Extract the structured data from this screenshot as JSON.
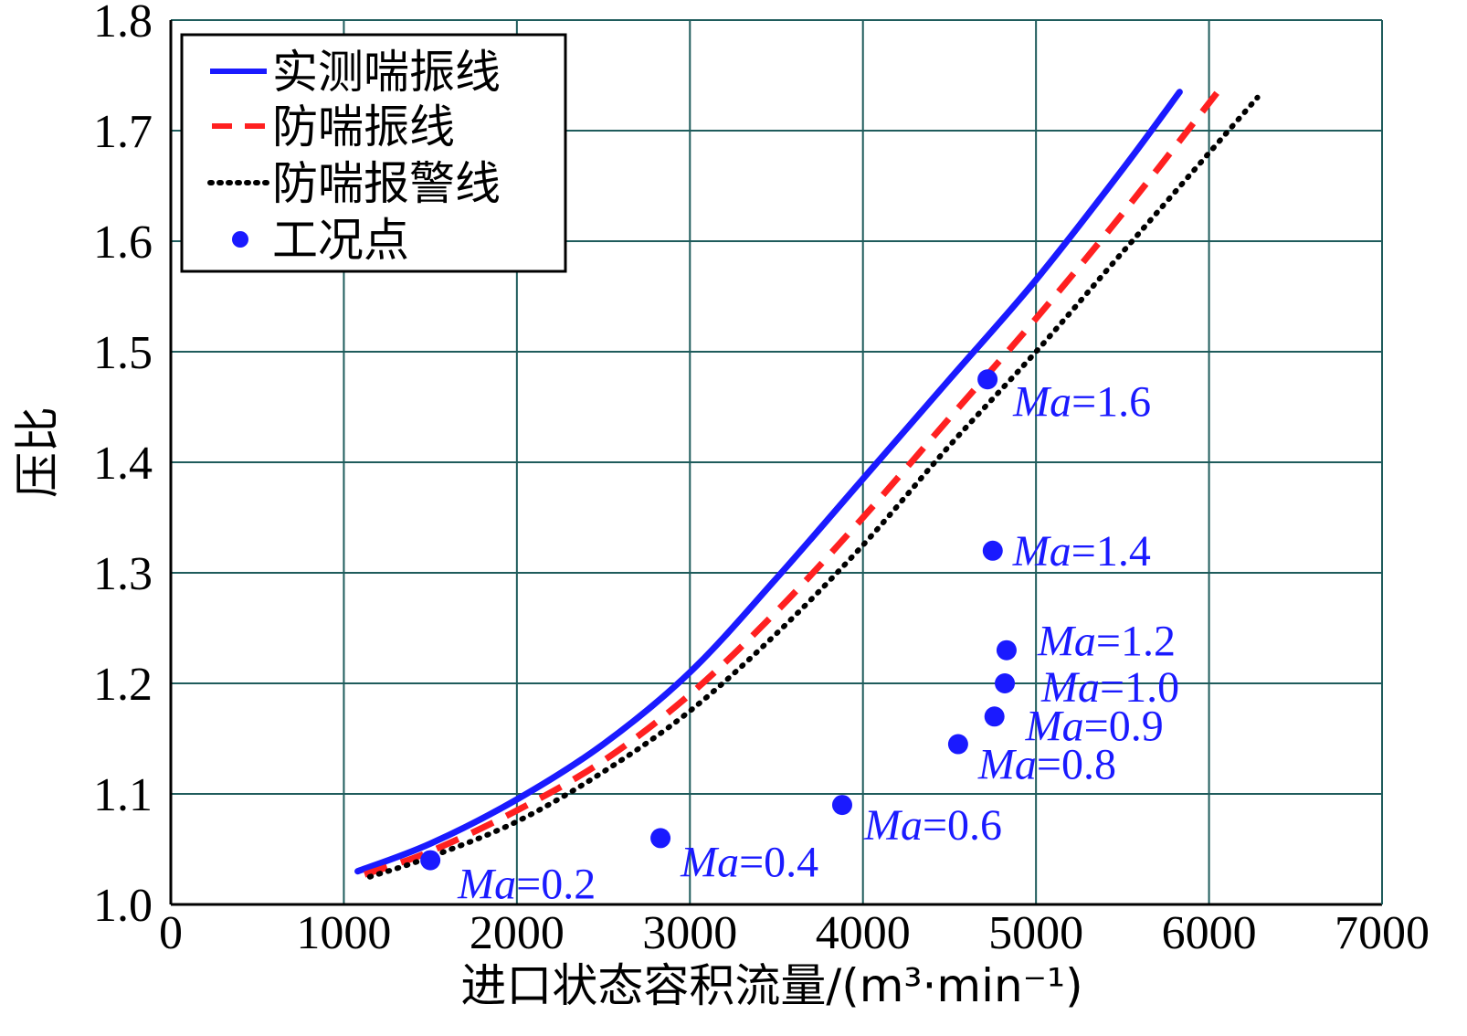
{
  "chart_data": {
    "type": "line",
    "xlabel": "进口状态容积流量/(m³·min⁻¹)",
    "ylabel": "压比",
    "xlim": [
      0,
      7000
    ],
    "ylim": [
      1.0,
      1.8
    ],
    "xticks": [
      "0",
      "1000",
      "2000",
      "3000",
      "4000",
      "5000",
      "6000",
      "7000"
    ],
    "yticks": [
      "1.0",
      "1.1",
      "1.2",
      "1.3",
      "1.4",
      "1.5",
      "1.6",
      "1.7",
      "1.8"
    ],
    "grid": true,
    "legend_position": "top-left",
    "colors": {
      "measured": "#1a1aff",
      "anti_surge": "#ff2020",
      "alarm": "#000000",
      "points": "#1a1aff",
      "grid": "#1f5c5c"
    },
    "series": [
      {
        "name": "实测喘振线",
        "style": "solid",
        "x": [
          1080,
          1500,
          2000,
          2500,
          3000,
          3500,
          4000,
          4500,
          5000,
          5500,
          5830
        ],
        "y": [
          1.03,
          1.055,
          1.095,
          1.145,
          1.21,
          1.295,
          1.385,
          1.475,
          1.565,
          1.665,
          1.735
        ]
      },
      {
        "name": "防喘振线",
        "style": "dashed",
        "x": [
          1120,
          1500,
          2000,
          2500,
          3000,
          3500,
          4000,
          4500,
          5000,
          5500,
          6050
        ],
        "y": [
          1.027,
          1.048,
          1.085,
          1.13,
          1.19,
          1.265,
          1.35,
          1.44,
          1.53,
          1.625,
          1.735
        ]
      },
      {
        "name": "防喘报警线",
        "style": "dotted",
        "x": [
          1150,
          1500,
          2000,
          2500,
          3000,
          3500,
          4000,
          4500,
          5000,
          5500,
          6280
        ],
        "y": [
          1.025,
          1.043,
          1.075,
          1.12,
          1.175,
          1.245,
          1.325,
          1.415,
          1.5,
          1.59,
          1.73
        ]
      }
    ],
    "points": {
      "name": "工况点",
      "items": [
        {
          "x": 1500,
          "y": 1.04,
          "label": "Ma=0.2",
          "prefix": "Ma",
          "value": "=0.2"
        },
        {
          "x": 2830,
          "y": 1.06,
          "label": "Ma=0.4",
          "prefix": "Ma",
          "value": "=0.4"
        },
        {
          "x": 3880,
          "y": 1.09,
          "label": "Ma=0.6",
          "prefix": "Ma",
          "value": "=0.6"
        },
        {
          "x": 4550,
          "y": 1.145,
          "label": "Ma=0.8",
          "prefix": "Ma",
          "value": "=0.8"
        },
        {
          "x": 4760,
          "y": 1.17,
          "label": "Ma=0.9",
          "prefix": "Ma",
          "value": "=0.9"
        },
        {
          "x": 4820,
          "y": 1.2,
          "label": "Ma=1.0",
          "prefix": "Ma",
          "value": "=1.0"
        },
        {
          "x": 4830,
          "y": 1.23,
          "label": "Ma=1.2",
          "prefix": "Ma",
          "value": "=1.2"
        },
        {
          "x": 4750,
          "y": 1.32,
          "label": "Ma=1.4",
          "prefix": "Ma",
          "value": "=1.4"
        },
        {
          "x": 4720,
          "y": 1.475,
          "label": "Ma=1.6",
          "prefix": "Ma",
          "value": "=1.6"
        }
      ]
    }
  }
}
